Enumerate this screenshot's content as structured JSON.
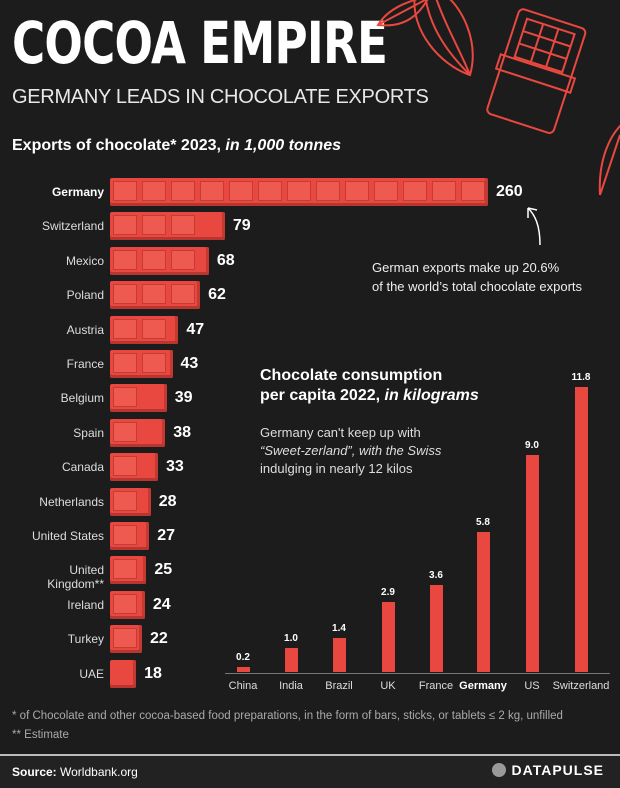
{
  "header": {
    "title": "COCOA EMPIRE",
    "subtitle": "GERMANY LEADS IN CHOCOLATE EXPORTS"
  },
  "chart_data": [
    {
      "type": "bar",
      "orientation": "horizontal",
      "title": "Exports of chocolate* 2023,",
      "title_italic": "in 1,000 tonnes",
      "categories": [
        "Germany",
        "Switzerland",
        "Mexico",
        "Poland",
        "Austria",
        "France",
        "Belgium",
        "Spain",
        "Canada",
        "Netherlands",
        "United States",
        "United Kingdom**",
        "Ireland",
        "Turkey",
        "UAE"
      ],
      "values": [
        260,
        79,
        68,
        62,
        47,
        43,
        39,
        38,
        33,
        28,
        27,
        25,
        24,
        22,
        18
      ],
      "highlight": "Germany",
      "annotation": "German exports make up 20.6% of the world's total chocolate exports",
      "annotation_lines": [
        "German exports make up 20.6%",
        "of the world’s total chocolate exports"
      ],
      "color": "#e8483f"
    },
    {
      "type": "bar",
      "orientation": "vertical",
      "title_lines": [
        "Chocolate consumption",
        "per capita 2022, "
      ],
      "title_italic": "in kilograms",
      "categories": [
        "China",
        "India",
        "Brazil",
        "UK",
        "France",
        "Germany",
        "US",
        "Switzerland"
      ],
      "values": [
        0.2,
        1.0,
        1.4,
        2.9,
        3.6,
        5.8,
        9.0,
        11.8
      ],
      "labels": [
        "0.2",
        "1.0",
        "1.4",
        "2.9",
        "3.6",
        "5.8",
        "9.0",
        "11.8"
      ],
      "highlight": "Germany",
      "annotation_lines": [
        "Germany can't keep up with",
        "“Sweet-zerland”, with the Swiss",
        "indulging in nearly 12 kilos"
      ],
      "ylim": [
        0,
        11.8
      ],
      "color": "#e8483f"
    }
  ],
  "footnotes": [
    "* of Chocolate and other cocoa-based food preparations, in the form of bars, sticks, or tablets ≤ 2 kg, unfilled",
    "** Estimate"
  ],
  "footer": {
    "source_label": "Source:",
    "source": " Worldbank.org",
    "brand": "DATAPULSE"
  },
  "colors": {
    "background": "#1c1c1c",
    "accent": "#e8483f"
  }
}
